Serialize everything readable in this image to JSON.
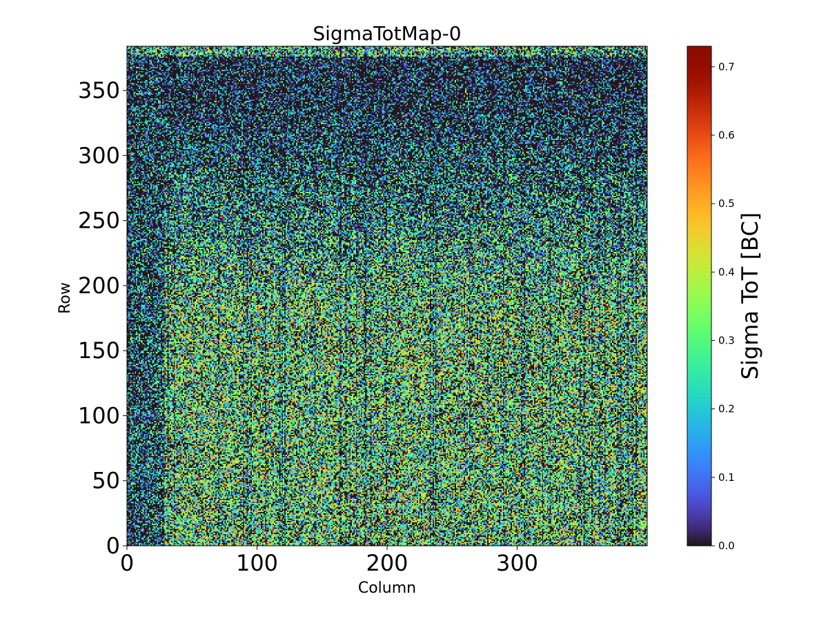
{
  "chart_data": {
    "type": "heatmap",
    "title": "SigmaTotMap-0",
    "xlabel": "Column",
    "ylabel": "Row",
    "xlim": [
      0,
      400
    ],
    "ylim": [
      0,
      384
    ],
    "x_ticks": [
      0,
      100,
      200,
      300
    ],
    "x_tick_labels": [
      "0",
      "100",
      "200",
      "300"
    ],
    "y_ticks": [
      0,
      50,
      100,
      150,
      200,
      250,
      300,
      350
    ],
    "y_tick_labels": [
      "0",
      "50",
      "100",
      "150",
      "200",
      "250",
      "300",
      "350"
    ],
    "grid": false,
    "colormap": "turbo",
    "colorbar": {
      "label": "Sigma ToT [BC]",
      "range": [
        0.0,
        0.73
      ],
      "ticks": [
        0.0,
        0.1,
        0.2,
        0.3,
        0.4,
        0.5,
        0.6,
        0.7
      ],
      "tick_labels": [
        "0.0",
        "0.1",
        "0.2",
        "0.3",
        "0.4",
        "0.5",
        "0.6",
        "0.7"
      ]
    },
    "grid_shape": {
      "columns": 400,
      "rows": 384
    },
    "value_description_note_is_not_included": true,
    "pattern": {
      "typical_value_lower_region": 0.3,
      "typical_value_upper_region": 0.05,
      "typical_value_left_strip": 0.08
    }
  }
}
